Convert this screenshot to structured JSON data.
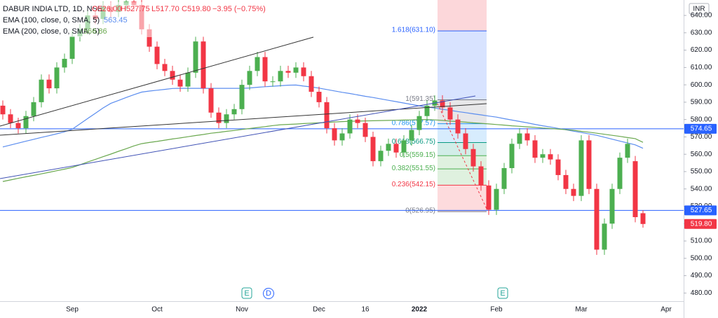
{
  "chart_data": {
    "type": "candlestick",
    "title": "DABUR INDIA LTD, 1D, NSE",
    "ohlc_labels": [
      "O526.00",
      "H527.75",
      "L517.70",
      "C519.80"
    ],
    "change_label": "−3.95 (−0.75%)",
    "currency": "INR",
    "up_color": "#4caf50",
    "down_color": "#f23645",
    "categories": [
      null,
      null,
      null,
      null,
      null,
      null,
      null,
      null,
      null,
      "Sep",
      null,
      null,
      null,
      null,
      null,
      null,
      null,
      null,
      null,
      null,
      "Oct",
      null,
      null,
      null,
      null,
      null,
      null,
      null,
      null,
      null,
      null,
      "Nov",
      null,
      null,
      null,
      null,
      null,
      null,
      null,
      null,
      null,
      "Dec",
      null,
      null,
      null,
      null,
      null,
      "16",
      null,
      null,
      null,
      null,
      null,
      null,
      "2022",
      null,
      null,
      null,
      null,
      null,
      null,
      null,
      null,
      null,
      "Feb",
      null,
      null,
      null,
      null,
      null,
      null,
      null,
      null,
      null,
      null,
      "Mar",
      null,
      null,
      null,
      null,
      null,
      null,
      null,
      null,
      null,
      null,
      "Apr"
    ],
    "open": [
      588,
      583,
      578,
      575,
      582,
      590,
      603,
      598,
      610,
      615,
      628,
      632,
      640,
      638,
      645,
      642,
      646,
      648,
      646,
      632,
      622,
      612,
      608,
      603,
      599,
      607,
      625,
      598,
      584,
      578,
      583,
      586,
      600,
      608,
      616,
      602,
      602,
      608,
      607,
      610,
      605,
      596,
      590,
      575,
      568,
      572,
      580,
      578,
      570,
      556,
      562,
      566,
      561,
      568,
      574,
      582,
      588,
      591,
      587,
      580,
      572,
      563,
      553,
      542,
      528,
      540,
      552,
      566,
      572,
      568,
      558,
      560,
      557,
      548,
      540,
      536,
      568,
      540,
      505,
      520,
      540,
      558,
      556,
      526,
      null,
      null,
      null
    ],
    "high": [
      591,
      586,
      581,
      585,
      593,
      606,
      606,
      613,
      618,
      631,
      635,
      643,
      643,
      648,
      648,
      649,
      651,
      651,
      649,
      635,
      625,
      615,
      611,
      606,
      610,
      628,
      628,
      601,
      587,
      586,
      589,
      603,
      611,
      619,
      619,
      605,
      611,
      611,
      613,
      613,
      608,
      599,
      593,
      578,
      575,
      583,
      583,
      581,
      573,
      565,
      569,
      569,
      571,
      577,
      585,
      591,
      594,
      594,
      590,
      583,
      575,
      566,
      556,
      545,
      543,
      555,
      569,
      575,
      575,
      571,
      563,
      563,
      560,
      551,
      543,
      571,
      571,
      543,
      523,
      543,
      561,
      569,
      559,
      527.75,
      null,
      null,
      null
    ],
    "low": [
      580,
      575,
      572,
      572,
      579,
      587,
      595,
      595,
      607,
      612,
      625,
      629,
      635,
      635,
      639,
      639,
      643,
      643,
      629,
      619,
      609,
      605,
      600,
      596,
      596,
      604,
      595,
      581,
      575,
      575,
      580,
      583,
      597,
      605,
      599,
      599,
      599,
      604,
      604,
      602,
      593,
      587,
      572,
      565,
      565,
      569,
      575,
      567,
      553,
      553,
      559,
      558,
      558,
      565,
      571,
      579,
      585,
      584,
      577,
      569,
      560,
      550,
      539,
      525,
      525,
      537,
      549,
      563,
      565,
      555,
      555,
      554,
      545,
      537,
      533,
      533,
      537,
      502,
      502,
      517,
      537,
      555,
      520.75,
      517.7,
      null,
      null,
      null
    ],
    "close": [
      583,
      578,
      575,
      582,
      590,
      603,
      598,
      610,
      615,
      628,
      632,
      640,
      638,
      645,
      642,
      646,
      648,
      646,
      632,
      622,
      612,
      608,
      603,
      599,
      607,
      625,
      598,
      584,
      578,
      583,
      586,
      600,
      608,
      616,
      602,
      602,
      608,
      607,
      610,
      605,
      596,
      590,
      575,
      568,
      572,
      580,
      578,
      570,
      556,
      562,
      566,
      561,
      568,
      574,
      582,
      588,
      591,
      587,
      580,
      572,
      563,
      553,
      542,
      528,
      540,
      552,
      566,
      572,
      568,
      558,
      560,
      557,
      548,
      540,
      536,
      568,
      540,
      505,
      520,
      540,
      558,
      566,
      523.75,
      519.8,
      null,
      null,
      null
    ],
    "series": [
      {
        "name": "EMA (100, close, 0, SMA, 5)",
        "color": "#5b8def",
        "values": [
          564.2,
          565.3,
          566.4,
          567.5,
          568.6,
          569.7,
          570.7,
          571.8,
          572.9,
          574.4,
          577.5,
          580.6,
          583.6,
          586.7,
          589.3,
          591.0,
          592.7,
          594.3,
          595.8,
          596.4,
          596.9,
          597.4,
          597.9,
          598,
          598,
          598,
          598,
          598,
          598,
          598,
          598,
          598,
          598.2,
          598.6,
          598.9,
          599.2,
          599.5,
          599.8,
          599.9,
          599.3,
          598.8,
          598.1,
          597.3,
          596.5,
          595.7,
          595.0,
          594.2,
          593.4,
          592.7,
          591.9,
          591.1,
          590.3,
          589.5,
          588.7,
          587.9,
          587.2,
          586.6,
          585.9,
          585.3,
          584.6,
          584.0,
          583.3,
          582.7,
          582.0,
          581.4,
          580.5,
          579.7,
          578.9,
          578.1,
          577.2,
          576.4,
          575.7,
          574.9,
          574.1,
          573.3,
          572.5,
          571.7,
          570.9,
          569.8,
          568.7,
          567.6,
          566.5,
          565.4,
          563.45,
          null,
          null,
          null
        ]
      },
      {
        "name": "EMA (200, close, 0, SMA, 5)",
        "color": "#6aa84f",
        "values": [
          544.3,
          545.2,
          546.1,
          547.0,
          547.8,
          548.7,
          549.6,
          550.5,
          551.4,
          552.4,
          553.9,
          555.5,
          557.0,
          558.6,
          560.1,
          561.7,
          563.2,
          564.8,
          566.1,
          566.8,
          567.4,
          568.1,
          568.8,
          569.4,
          570.1,
          570.8,
          571.4,
          572.1,
          572.6,
          573.2,
          573.7,
          574.3,
          574.8,
          575.4,
          575.9,
          576.5,
          577.0,
          577.2,
          577.4,
          577.7,
          577.9,
          578.1,
          578.3,
          578.6,
          578.8,
          579.0,
          579.1,
          579.2,
          579.3,
          579.4,
          579.5,
          579.6,
          579.7,
          579.8,
          579.9,
          580.0,
          579.8,
          579.5,
          579.1,
          578.8,
          578.5,
          578.1,
          577.8,
          577.5,
          577.1,
          576.8,
          576.4,
          576.1,
          575.8,
          575.5,
          575.1,
          574.8,
          574.5,
          574.2,
          573.8,
          573.2,
          572.7,
          572.1,
          571.5,
          570.9,
          570.3,
          569.6,
          569.0,
          566.86,
          null,
          null,
          null
        ]
      }
    ],
    "fib_levels": [
      {
        "value": 526.95,
        "label": "0(526.95)",
        "color": "#787b86"
      },
      {
        "value": 542.15,
        "label": "0.236(542.15)",
        "color": "#f23645"
      },
      {
        "value": 551.55,
        "label": "0.382(551.55)",
        "color": "#4caf50"
      },
      {
        "value": 559.15,
        "label": "0.5(559.15)",
        "color": "#4caf50"
      },
      {
        "value": 566.75,
        "label": "0.618(566.75)",
        "color": "#089981"
      },
      {
        "value": 577.57,
        "label": "0.786(577.57)",
        "color": "#2196f3"
      },
      {
        "value": 591.35,
        "label": "1(591.35)",
        "color": "#787b86"
      },
      {
        "value": 631.1,
        "label": "1.618(631.10)",
        "color": "#2962ff"
      }
    ],
    "hlines": [
      574.65,
      527.65
    ],
    "hline_color": "#2962ff",
    "last_price": {
      "value": 519.8,
      "label": "519.80"
    },
    "events": [
      "E",
      "D",
      "E"
    ],
    "ylim": [
      475.3,
      648.9
    ],
    "yticks": [
      {
        "value": 640,
        "label": "640.00"
      },
      {
        "value": 630,
        "label": "630.00"
      },
      {
        "value": 620,
        "label": "620.00"
      },
      {
        "value": 610,
        "label": "610.00"
      },
      {
        "value": 600,
        "label": "600.00"
      },
      {
        "value": 590,
        "label": "590.00"
      },
      {
        "value": 580,
        "label": "580.00"
      },
      {
        "value": 570,
        "label": "570.00"
      },
      {
        "value": 560,
        "label": "560.00"
      },
      {
        "value": 550,
        "label": "550.00"
      },
      {
        "value": 540,
        "label": "540.00"
      },
      {
        "value": 530,
        "label": "530.00"
      },
      {
        "value": 520,
        "label": "520.00"
      },
      {
        "value": 510,
        "label": "510.00"
      },
      {
        "value": 500,
        "label": "500.00"
      },
      {
        "value": 490,
        "label": "490.00"
      },
      {
        "value": 480,
        "label": "480.00"
      }
    ],
    "grid": false
  }
}
